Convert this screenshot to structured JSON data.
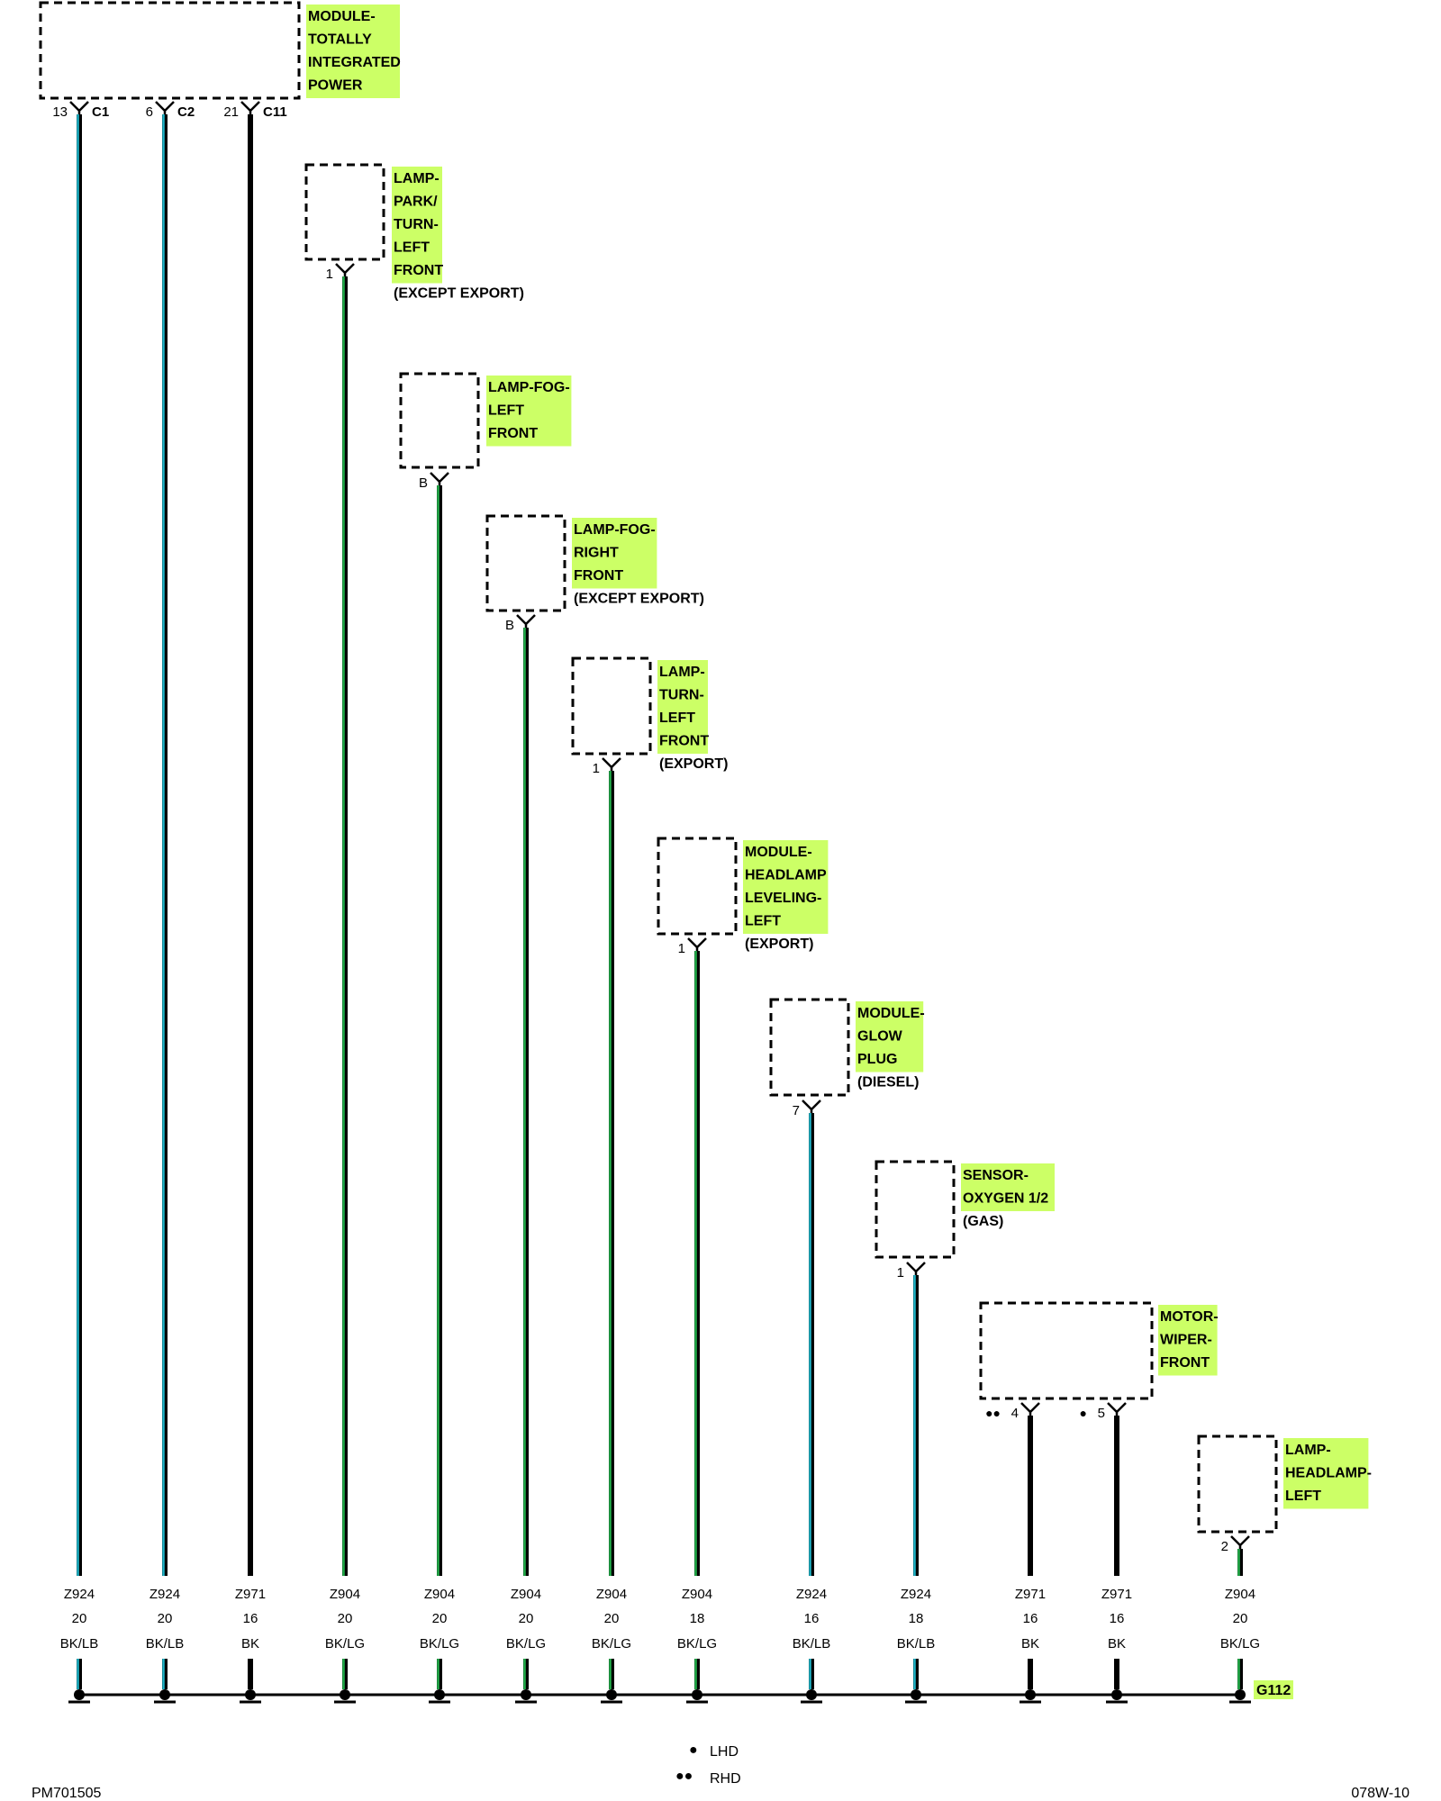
{
  "components": [
    {
      "id": "tipm",
      "lines": [
        "MODULE-",
        "TOTALLY",
        "INTEGRATED",
        "POWER"
      ],
      "note": ""
    },
    {
      "id": "park-turn-lf",
      "lines": [
        "LAMP-",
        "PARK/",
        "TURN-",
        "LEFT",
        "FRONT"
      ],
      "note": "(EXCEPT EXPORT)"
    },
    {
      "id": "fog-lf",
      "lines": [
        "LAMP-FOG-",
        "LEFT",
        "FRONT"
      ],
      "note": ""
    },
    {
      "id": "fog-rf",
      "lines": [
        "LAMP-FOG-",
        "RIGHT",
        "FRONT"
      ],
      "note": "(EXCEPT EXPORT)"
    },
    {
      "id": "turn-lf",
      "lines": [
        "LAMP-",
        "TURN-",
        "LEFT",
        "FRONT"
      ],
      "note": "(EXPORT)"
    },
    {
      "id": "hl-leveling",
      "lines": [
        "MODULE-",
        "HEADLAMP",
        "LEVELING-",
        "LEFT"
      ],
      "note": "(EXPORT)"
    },
    {
      "id": "glow-plug",
      "lines": [
        "MODULE-",
        "GLOW",
        "PLUG"
      ],
      "note": "(DIESEL)"
    },
    {
      "id": "o2-sensor",
      "lines": [
        "SENSOR-",
        "OXYGEN 1/2"
      ],
      "note": "(GAS)"
    },
    {
      "id": "wiper-motor",
      "lines": [
        "MOTOR-",
        "WIPER-",
        "FRONT"
      ],
      "note": ""
    },
    {
      "id": "headlamp-left",
      "lines": [
        "LAMP-",
        "HEADLAMP-",
        "LEFT"
      ],
      "note": ""
    }
  ],
  "pins": [
    {
      "num": "13",
      "conn": "C1",
      "marks": ""
    },
    {
      "num": "6",
      "conn": "C2",
      "marks": ""
    },
    {
      "num": "21",
      "conn": "C11",
      "marks": ""
    },
    {
      "num": "1",
      "conn": "",
      "marks": ""
    },
    {
      "num": "B",
      "conn": "",
      "marks": ""
    },
    {
      "num": "B",
      "conn": "",
      "marks": ""
    },
    {
      "num": "1",
      "conn": "",
      "marks": ""
    },
    {
      "num": "1",
      "conn": "",
      "marks": ""
    },
    {
      "num": "7",
      "conn": "",
      "marks": ""
    },
    {
      "num": "1",
      "conn": "",
      "marks": ""
    },
    {
      "num": "4",
      "conn": "",
      "marks": "●●"
    },
    {
      "num": "5",
      "conn": "",
      "marks": "●"
    },
    {
      "num": "2",
      "conn": "",
      "marks": ""
    }
  ],
  "wires": [
    {
      "circuit": "Z924",
      "gauge": "20",
      "color": "BK/LB",
      "stripe": "#1fb5c9"
    },
    {
      "circuit": "Z924",
      "gauge": "20",
      "color": "BK/LB",
      "stripe": "#1fb5c9"
    },
    {
      "circuit": "Z971",
      "gauge": "16",
      "color": "BK",
      "stripe": ""
    },
    {
      "circuit": "Z904",
      "gauge": "20",
      "color": "BK/LG",
      "stripe": "#22b04a"
    },
    {
      "circuit": "Z904",
      "gauge": "20",
      "color": "BK/LG",
      "stripe": "#22b04a"
    },
    {
      "circuit": "Z904",
      "gauge": "20",
      "color": "BK/LG",
      "stripe": "#22b04a"
    },
    {
      "circuit": "Z904",
      "gauge": "20",
      "color": "BK/LG",
      "stripe": "#22b04a"
    },
    {
      "circuit": "Z904",
      "gauge": "18",
      "color": "BK/LG",
      "stripe": "#22b04a"
    },
    {
      "circuit": "Z924",
      "gauge": "16",
      "color": "BK/LB",
      "stripe": "#1fb5c9"
    },
    {
      "circuit": "Z924",
      "gauge": "18",
      "color": "BK/LB",
      "stripe": "#1fb5c9"
    },
    {
      "circuit": "Z971",
      "gauge": "16",
      "color": "BK",
      "stripe": ""
    },
    {
      "circuit": "Z971",
      "gauge": "16",
      "color": "BK",
      "stripe": ""
    },
    {
      "circuit": "Z904",
      "gauge": "20",
      "color": "BK/LG",
      "stripe": "#22b04a"
    }
  ],
  "ground": {
    "label": "G112"
  },
  "legend": [
    {
      "symbol": "●",
      "text": "LHD"
    },
    {
      "symbol": "●●",
      "text": "RHD"
    }
  ],
  "footer": {
    "left": "PM701505",
    "right": "078W-10"
  },
  "colors": {
    "highlight": "#ccff66",
    "wire": "#000000",
    "light_blue": "#1fb5c9",
    "light_green": "#22b04a"
  }
}
